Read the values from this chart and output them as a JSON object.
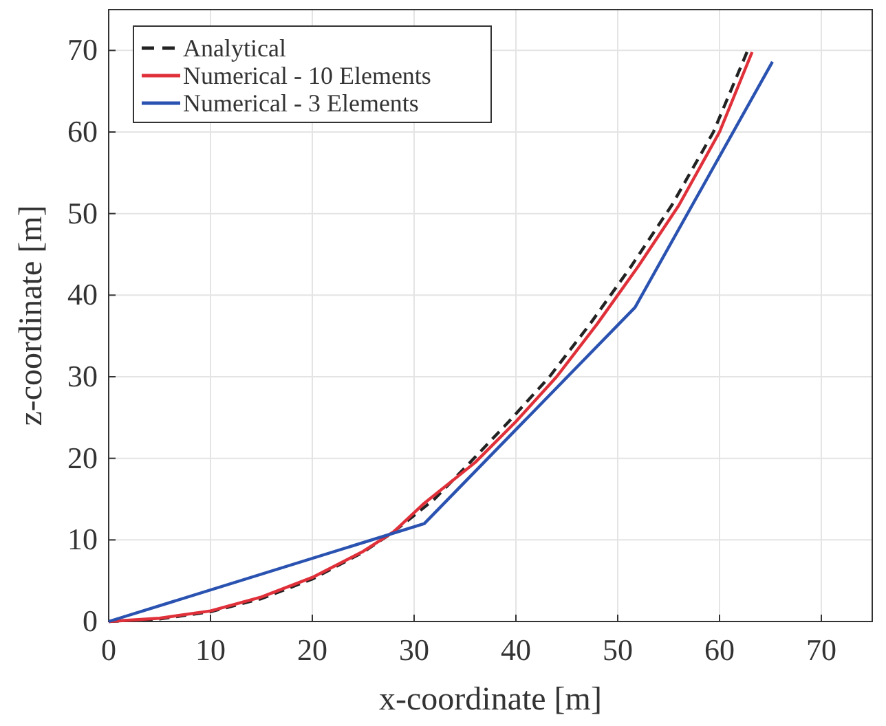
{
  "chart_data": {
    "type": "line",
    "xlabel": "x-coordinate [m]",
    "ylabel": "z-coordinate [m]",
    "xlim": [
      0,
      75
    ],
    "ylim": [
      0,
      75
    ],
    "xticks": [
      0,
      10,
      20,
      30,
      40,
      50,
      60,
      70
    ],
    "yticks": [
      0,
      10,
      20,
      30,
      40,
      50,
      60,
      70
    ],
    "grid": true,
    "legend": "top left",
    "series": [
      {
        "name": "Analytical",
        "color": "#222222",
        "line_style": "dashed",
        "x": [
          0,
          5,
          10,
          15,
          20,
          25,
          28,
          32,
          35.5,
          39.3,
          43.3,
          47.3,
          51.3,
          55.3,
          59.4,
          62.7
        ],
        "values": [
          0,
          0.3,
          1.2,
          2.8,
          5.2,
          8.5,
          11,
          15,
          19.5,
          24.5,
          30,
          36.5,
          43.5,
          51,
          60,
          69.8
        ]
      },
      {
        "name": "Numerical - 10 Elements",
        "color": "#e0303a",
        "line_style": "solid",
        "x": [
          0,
          5,
          10,
          15,
          20,
          25,
          28,
          31,
          36,
          40,
          44,
          48,
          52,
          56,
          60,
          63.2
        ],
        "values": [
          0,
          0.4,
          1.3,
          3,
          5.4,
          8.6,
          11,
          14.5,
          19.5,
          24.5,
          30,
          36.5,
          43.5,
          51,
          60,
          69.8
        ]
      },
      {
        "name": "Numerical - 3 Elements",
        "color": "#2a52b0",
        "line_style": "solid",
        "x": [
          0,
          31,
          51.7,
          65.2
        ],
        "values": [
          0,
          12,
          38.5,
          68.6
        ]
      }
    ]
  }
}
